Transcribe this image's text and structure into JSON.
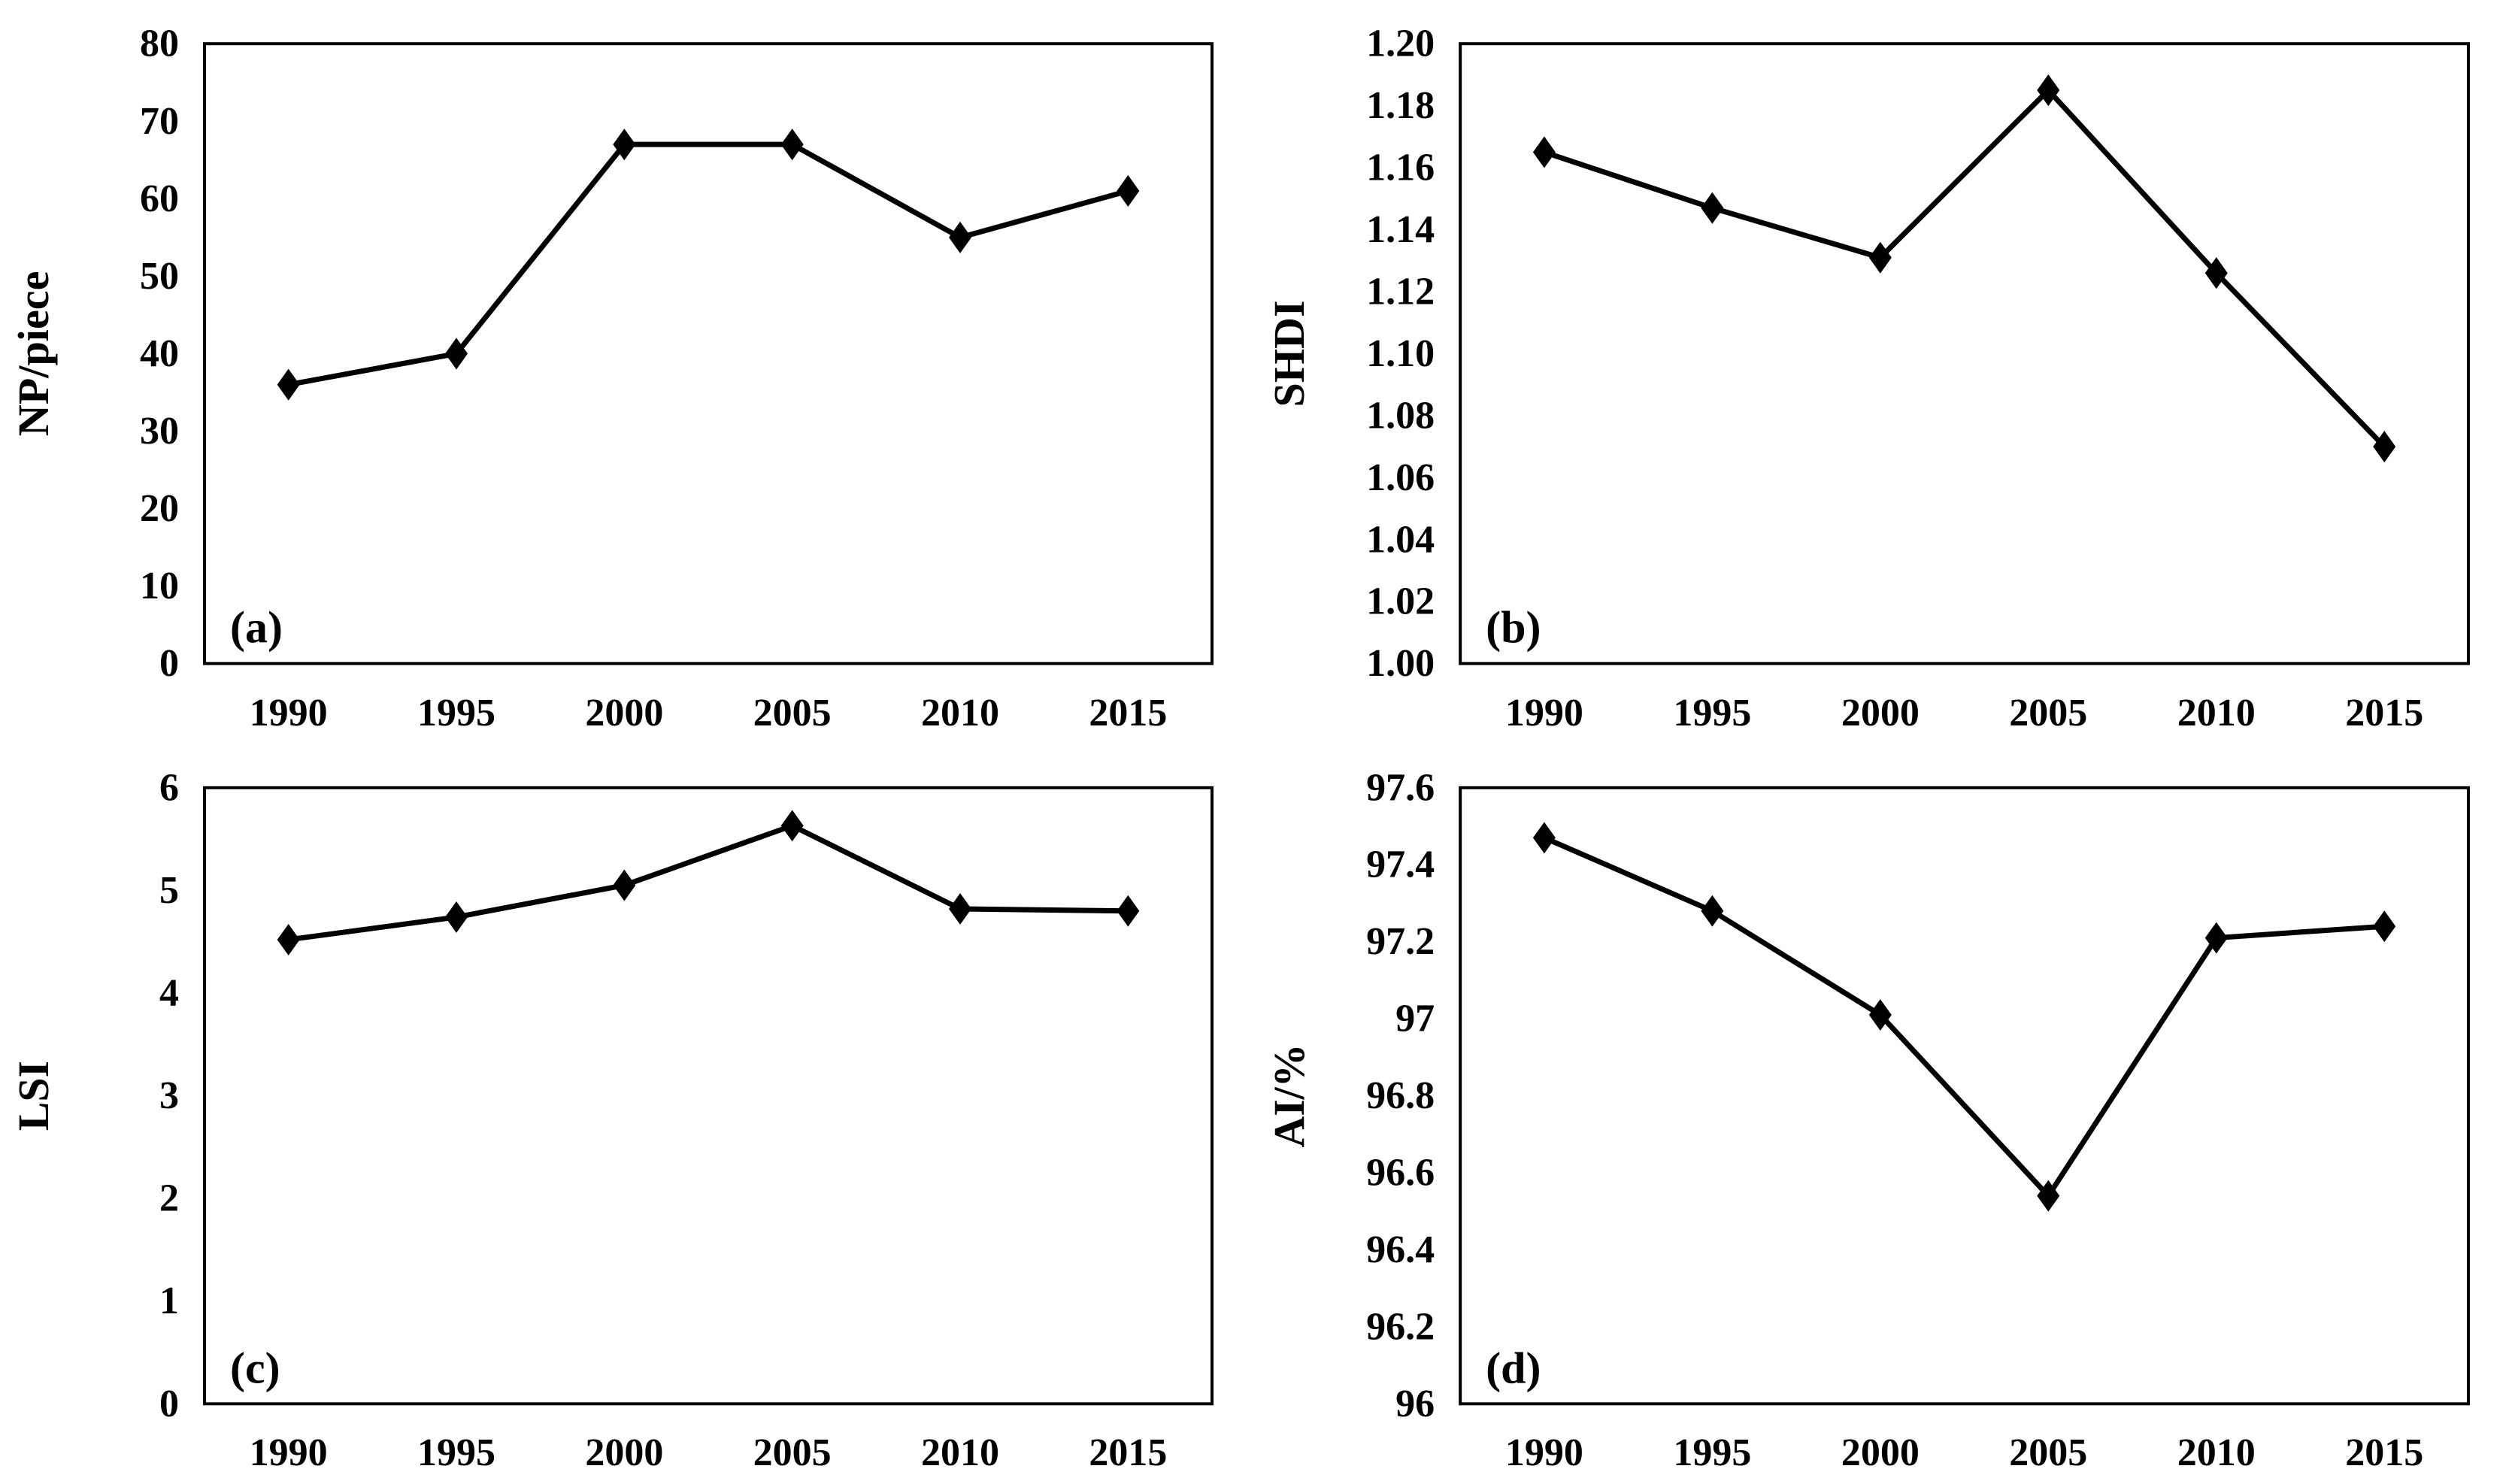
{
  "page": {
    "background_color": "#ffffff",
    "line_color": "#000000",
    "text_color": "#000000",
    "marker_shape": "diamond"
  },
  "chart_data": [
    {
      "type": "line",
      "panel_label": "(a)",
      "title": "",
      "xlabel": "",
      "ylabel": "NP/piece",
      "categories": [
        "1990",
        "1995",
        "2000",
        "2005",
        "2010",
        "2015"
      ],
      "values": [
        36,
        40,
        67,
        67,
        55,
        61
      ],
      "ylim": [
        0,
        80
      ],
      "ytick_values": [
        0,
        10,
        20,
        30,
        40,
        50,
        60,
        70,
        80
      ],
      "ytick_labels": [
        "0",
        "10",
        "20",
        "30",
        "40",
        "50",
        "60",
        "70",
        "80"
      ],
      "grid": false,
      "legend": "none"
    },
    {
      "type": "line",
      "panel_label": "(b)",
      "title": "",
      "xlabel": "",
      "ylabel": "SHDI",
      "categories": [
        "1990",
        "1995",
        "2000",
        "2005",
        "2010",
        "2015"
      ],
      "values": [
        1.165,
        1.147,
        1.131,
        1.185,
        1.126,
        1.07
      ],
      "ylim": [
        1.0,
        1.2
      ],
      "ytick_values": [
        1.0,
        1.02,
        1.04,
        1.06,
        1.08,
        1.1,
        1.12,
        1.14,
        1.16,
        1.18,
        1.2
      ],
      "ytick_labels": [
        "1.00",
        "1.02",
        "1.04",
        "1.06",
        "1.08",
        "1.10",
        "1.12",
        "1.14",
        "1.16",
        "1.18",
        "1.20"
      ],
      "grid": false,
      "legend": "none"
    },
    {
      "type": "line",
      "panel_label": "(c)",
      "title": "",
      "xlabel": "",
      "ylabel": "LSI",
      "categories": [
        "1990",
        "1995",
        "2000",
        "2005",
        "2010",
        "2015"
      ],
      "values": [
        4.52,
        4.74,
        5.05,
        5.63,
        4.82,
        4.8
      ],
      "ylim": [
        0,
        6
      ],
      "ytick_values": [
        0,
        1,
        2,
        3,
        4,
        5,
        6
      ],
      "ytick_labels": [
        "0",
        "1",
        "2",
        "3",
        "4",
        "5",
        "6"
      ],
      "grid": false,
      "legend": "none"
    },
    {
      "type": "line",
      "panel_label": "(d)",
      "title": "",
      "xlabel": "",
      "ylabel": "AI/%",
      "categories": [
        "1990",
        "1995",
        "2000",
        "2005",
        "2010",
        "2015"
      ],
      "values": [
        97.47,
        97.28,
        97.01,
        96.54,
        97.21,
        97.24
      ],
      "ylim": [
        96,
        97.6
      ],
      "ytick_values": [
        96,
        96.2,
        96.4,
        96.6,
        96.8,
        97,
        97.2,
        97.4,
        97.6
      ],
      "ytick_labels": [
        "96",
        "96.2",
        "96.4",
        "96.6",
        "96.8",
        "97",
        "97.2",
        "97.4",
        "97.6"
      ],
      "grid": false,
      "legend": "none"
    }
  ]
}
